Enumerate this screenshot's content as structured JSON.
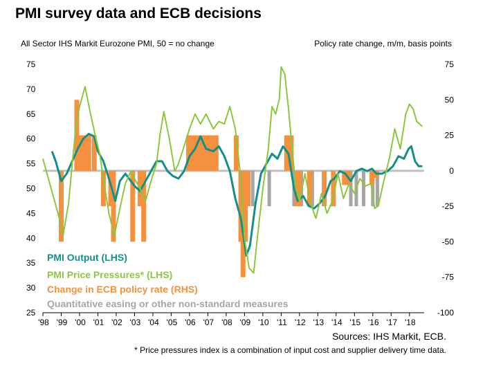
{
  "title": "PMI survey data and ECB decisions",
  "subtitle_left": "All Sector IHS Markit Eurozone PMI,  50 = no change",
  "subtitle_right": "Policy rate change, m/m, basis points",
  "source": "Sources: IHS Markit, ECB.",
  "footnote": "* Price pressures index is a combination of input cost and supplier delivery time data.",
  "legend": [
    {
      "label": "PMI Output (LHS)",
      "color": "#138f86"
    },
    {
      "label": "PMI Price Pressures* (LHS)",
      "color": "#8cc63e"
    },
    {
      "label": "Change in ECB policy rate (RHS)",
      "color": "#f4913f"
    },
    {
      "label": "Quantitative easing or other non-standard measures",
      "color": "#a6a6a6"
    }
  ],
  "chart_data": {
    "type": "bar+line",
    "x_ticks": [
      "'98",
      "'99",
      "'00",
      "'01",
      "'02",
      "'03",
      "'04",
      "'05",
      "'06",
      "'07",
      "'08",
      "'09",
      "'10",
      "'11",
      "'12",
      "'13",
      "'14",
      "'15",
      "'16",
      "'17",
      "'18"
    ],
    "x_range": [
      1998.0,
      2018.8
    ],
    "left_axis": {
      "ticks": [
        75,
        70,
        65,
        60,
        55,
        50,
        45,
        40,
        35,
        30,
        25
      ],
      "range": [
        25,
        75
      ]
    },
    "right_axis": {
      "ticks": [
        75,
        50,
        25,
        0,
        -25,
        -50,
        -75,
        -100
      ],
      "range": [
        -100,
        75
      ]
    },
    "series": [
      {
        "name": "PMI Output (LHS)",
        "axis": "left",
        "color": "#138f86",
        "points": [
          [
            1998.5,
            57.5
          ],
          [
            1998.7,
            55.5
          ],
          [
            1999.0,
            51.5
          ],
          [
            1999.3,
            53.0
          ],
          [
            1999.6,
            55.5
          ],
          [
            1999.9,
            58.0
          ],
          [
            2000.2,
            60.0
          ],
          [
            2000.5,
            61.0
          ],
          [
            2000.8,
            60.5
          ],
          [
            2001.0,
            57.5
          ],
          [
            2001.3,
            55.5
          ],
          [
            2001.6,
            52.0
          ],
          [
            2001.8,
            49.5
          ],
          [
            2001.95,
            47.5
          ],
          [
            2002.2,
            51.5
          ],
          [
            2002.5,
            53.0
          ],
          [
            2002.8,
            51.5
          ],
          [
            2003.0,
            50.5
          ],
          [
            2003.3,
            49.5
          ],
          [
            2003.6,
            51.5
          ],
          [
            2003.9,
            53.5
          ],
          [
            2004.2,
            55.5
          ],
          [
            2004.5,
            55.5
          ],
          [
            2004.8,
            53.5
          ],
          [
            2005.1,
            52.5
          ],
          [
            2005.4,
            52.0
          ],
          [
            2005.7,
            53.5
          ],
          [
            2006.0,
            56.5
          ],
          [
            2006.3,
            58.0
          ],
          [
            2006.6,
            60.5
          ],
          [
            2006.9,
            58.0
          ],
          [
            2007.3,
            57.5
          ],
          [
            2007.6,
            58.5
          ],
          [
            2007.9,
            56.5
          ],
          [
            2008.2,
            53.5
          ],
          [
            2008.5,
            48.0
          ],
          [
            2008.8,
            44.0
          ],
          [
            2009.1,
            36.5
          ],
          [
            2009.3,
            38.5
          ],
          [
            2009.6,
            47.0
          ],
          [
            2009.9,
            53.0
          ],
          [
            2010.2,
            55.0
          ],
          [
            2010.5,
            57.0
          ],
          [
            2010.8,
            56.0
          ],
          [
            2011.1,
            58.5
          ],
          [
            2011.4,
            57.0
          ],
          [
            2011.7,
            50.0
          ],
          [
            2011.9,
            47.5
          ],
          [
            2012.2,
            48.5
          ],
          [
            2012.5,
            46.5
          ],
          [
            2012.8,
            46.0
          ],
          [
            2013.1,
            47.0
          ],
          [
            2013.4,
            48.5
          ],
          [
            2013.7,
            51.5
          ],
          [
            2013.9,
            52.0
          ],
          [
            2014.2,
            53.5
          ],
          [
            2014.5,
            53.0
          ],
          [
            2014.8,
            51.5
          ],
          [
            2015.1,
            53.5
          ],
          [
            2015.4,
            54.0
          ],
          [
            2015.7,
            53.5
          ],
          [
            2015.95,
            54.0
          ],
          [
            2016.2,
            53.0
          ],
          [
            2016.5,
            53.0
          ],
          [
            2016.8,
            53.5
          ],
          [
            2017.1,
            54.5
          ],
          [
            2017.4,
            56.5
          ],
          [
            2017.7,
            56.0
          ],
          [
            2017.95,
            58.0
          ],
          [
            2018.1,
            58.5
          ],
          [
            2018.3,
            55.5
          ],
          [
            2018.5,
            54.5
          ],
          [
            2018.7,
            54.5
          ]
        ]
      },
      {
        "name": "PMI Price Pressures* (LHS)",
        "axis": "left",
        "color": "#8cc63e",
        "points": [
          [
            1998.0,
            56.0
          ],
          [
            1998.3,
            52.0
          ],
          [
            1998.6,
            48.0
          ],
          [
            1998.9,
            44.0
          ],
          [
            1999.1,
            40.5
          ],
          [
            1999.4,
            47.0
          ],
          [
            1999.6,
            55.0
          ],
          [
            1999.8,
            62.5
          ],
          [
            2000.0,
            66.5
          ],
          [
            2000.3,
            70.5
          ],
          [
            2000.6,
            65.0
          ],
          [
            2000.9,
            60.0
          ],
          [
            2001.1,
            57.0
          ],
          [
            2001.3,
            52.0
          ],
          [
            2001.6,
            45.0
          ],
          [
            2001.9,
            40.5
          ],
          [
            2002.2,
            46.0
          ],
          [
            2002.5,
            51.0
          ],
          [
            2002.8,
            53.5
          ],
          [
            2003.0,
            52.0
          ],
          [
            2003.3,
            50.0
          ],
          [
            2003.6,
            47.5
          ],
          [
            2003.9,
            51.5
          ],
          [
            2004.2,
            55.0
          ],
          [
            2004.4,
            61.0
          ],
          [
            2004.6,
            65.5
          ],
          [
            2004.9,
            60.0
          ],
          [
            2005.2,
            53.5
          ],
          [
            2005.4,
            55.0
          ],
          [
            2005.7,
            58.5
          ],
          [
            2006.0,
            62.0
          ],
          [
            2006.3,
            65.0
          ],
          [
            2006.6,
            63.0
          ],
          [
            2006.9,
            65.0
          ],
          [
            2007.3,
            62.0
          ],
          [
            2007.6,
            63.5
          ],
          [
            2007.9,
            63.0
          ],
          [
            2008.2,
            66.5
          ],
          [
            2008.5,
            62.0
          ],
          [
            2008.8,
            52.0
          ],
          [
            2009.0,
            40.0
          ],
          [
            2009.25,
            34.0
          ],
          [
            2009.5,
            33.0
          ],
          [
            2009.7,
            40.0
          ],
          [
            2010.0,
            50.0
          ],
          [
            2010.3,
            58.0
          ],
          [
            2010.5,
            66.5
          ],
          [
            2010.7,
            65.0
          ],
          [
            2010.9,
            68.0
          ],
          [
            2011.0,
            74.5
          ],
          [
            2011.2,
            73.0
          ],
          [
            2011.4,
            66.0
          ],
          [
            2011.6,
            58.0
          ],
          [
            2011.8,
            50.0
          ],
          [
            2012.0,
            47.5
          ],
          [
            2012.3,
            53.0
          ],
          [
            2012.6,
            47.0
          ],
          [
            2012.9,
            44.0
          ],
          [
            2013.2,
            49.0
          ],
          [
            2013.5,
            45.0
          ],
          [
            2013.8,
            47.5
          ],
          [
            2014.1,
            53.0
          ],
          [
            2014.4,
            48.0
          ],
          [
            2014.7,
            51.0
          ],
          [
            2015.0,
            49.0
          ],
          [
            2015.3,
            52.0
          ],
          [
            2015.6,
            50.5
          ],
          [
            2015.9,
            51.0
          ],
          [
            2016.1,
            46.0
          ],
          [
            2016.3,
            46.5
          ],
          [
            2016.6,
            51.5
          ],
          [
            2016.9,
            56.0
          ],
          [
            2017.2,
            62.0
          ],
          [
            2017.5,
            58.0
          ],
          [
            2017.8,
            65.0
          ],
          [
            2018.0,
            67.0
          ],
          [
            2018.2,
            66.0
          ],
          [
            2018.4,
            63.5
          ],
          [
            2018.7,
            62.5
          ]
        ]
      }
    ],
    "policy_rate_changes": [
      {
        "x": 1999.0,
        "value": -50
      },
      {
        "x": 1999.85,
        "value": 50
      },
      {
        "x": 2000.0,
        "value": 25
      },
      {
        "x": 2000.2,
        "value": 25
      },
      {
        "x": 2000.35,
        "value": 25
      },
      {
        "x": 2000.5,
        "value": 25
      },
      {
        "x": 2000.8,
        "value": 25
      },
      {
        "x": 2001.3,
        "value": -25
      },
      {
        "x": 2001.7,
        "value": -25
      },
      {
        "x": 2001.85,
        "value": -50
      },
      {
        "x": 2002.9,
        "value": -50
      },
      {
        "x": 2003.3,
        "value": -25
      },
      {
        "x": 2003.5,
        "value": -50
      },
      {
        "x": 2005.95,
        "value": 25
      },
      {
        "x": 2006.2,
        "value": 25
      },
      {
        "x": 2006.45,
        "value": 25
      },
      {
        "x": 2006.6,
        "value": 25
      },
      {
        "x": 2006.8,
        "value": 25
      },
      {
        "x": 2007.0,
        "value": 25
      },
      {
        "x": 2007.2,
        "value": 25
      },
      {
        "x": 2007.45,
        "value": 25
      },
      {
        "x": 2008.55,
        "value": 25
      },
      {
        "x": 2008.8,
        "value": -50
      },
      {
        "x": 2008.92,
        "value": -75
      },
      {
        "x": 2009.05,
        "value": -50
      },
      {
        "x": 2009.2,
        "value": -25
      },
      {
        "x": 2011.3,
        "value": 25
      },
      {
        "x": 2011.55,
        "value": 25
      },
      {
        "x": 2011.85,
        "value": -25
      },
      {
        "x": 2012.0,
        "value": -25
      },
      {
        "x": 2012.55,
        "value": -25
      },
      {
        "x": 2013.35,
        "value": -25
      },
      {
        "x": 2013.85,
        "value": -25
      },
      {
        "x": 2014.45,
        "value": -10
      },
      {
        "x": 2014.7,
        "value": -10
      },
      {
        "x": 2015.95,
        "value": -10
      },
      {
        "x": 2016.2,
        "value": -5
      }
    ],
    "non_standard_measures": [
      {
        "x": 2009.45
      },
      {
        "x": 2010.35
      },
      {
        "x": 2011.7
      },
      {
        "x": 2012.1
      },
      {
        "x": 2012.7
      },
      {
        "x": 2014.8
      },
      {
        "x": 2015.1
      },
      {
        "x": 2015.5
      },
      {
        "x": 2016.0
      },
      {
        "x": 2016.25
      }
    ]
  }
}
